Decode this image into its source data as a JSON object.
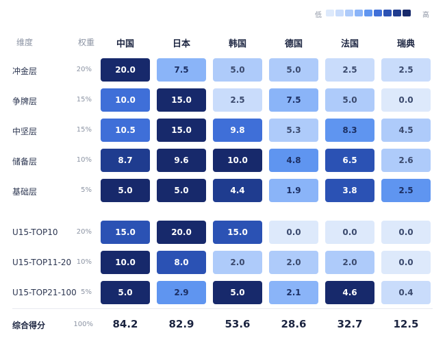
{
  "legend": {
    "low_label": "低",
    "high_label": "高",
    "colors": [
      "#dde9fb",
      "#c9dcfb",
      "#aecbfa",
      "#8ab4f8",
      "#5f95f0",
      "#3f6fd8",
      "#2b52b4",
      "#1f3c8f",
      "#17296b"
    ]
  },
  "table": {
    "dimension_header": "维度",
    "weight_header": "权重",
    "total_label": "综合得分",
    "total_weight": "100%"
  },
  "chart_data": {
    "type": "heatmap",
    "countries": [
      "中国",
      "日本",
      "韩国",
      "德国",
      "法国",
      "瑞典"
    ],
    "rows": [
      {
        "label": "冲金层",
        "weight": "20%",
        "values": [
          20.0,
          7.5,
          5.0,
          5.0,
          2.5,
          2.5
        ],
        "display": [
          "20.0",
          "7.5",
          "5.0",
          "5.0",
          "2.5",
          "2.5"
        ],
        "levels": [
          9,
          4,
          3,
          3,
          2,
          2
        ]
      },
      {
        "label": "争牌层",
        "weight": "15%",
        "values": [
          10.0,
          15.0,
          2.5,
          7.5,
          5.0,
          0.0
        ],
        "display": [
          "10.0",
          "15.0",
          "2.5",
          "7.5",
          "5.0",
          "0.0"
        ],
        "levels": [
          6,
          9,
          2,
          4,
          3,
          1
        ]
      },
      {
        "label": "中坚层",
        "weight": "15%",
        "values": [
          10.5,
          15.0,
          9.8,
          5.3,
          8.3,
          4.5
        ],
        "display": [
          "10.5",
          "15.0",
          "9.8",
          "5.3",
          "8.3",
          "4.5"
        ],
        "levels": [
          6,
          9,
          6,
          3,
          5,
          3
        ]
      },
      {
        "label": "储备层",
        "weight": "10%",
        "values": [
          8.7,
          9.6,
          10.0,
          4.8,
          6.5,
          2.6
        ],
        "display": [
          "8.7",
          "9.6",
          "10.0",
          "4.8",
          "6.5",
          "2.6"
        ],
        "levels": [
          8,
          9,
          9,
          5,
          7,
          3
        ]
      },
      {
        "label": "基础层",
        "weight": "5%",
        "values": [
          5.0,
          5.0,
          4.4,
          1.9,
          3.8,
          2.5
        ],
        "display": [
          "5.0",
          "5.0",
          "4.4",
          "1.9",
          "3.8",
          "2.5"
        ],
        "levels": [
          9,
          9,
          8,
          4,
          7,
          5
        ]
      },
      {
        "label": "U15-TOP10",
        "weight": "20%",
        "values": [
          15.0,
          20.0,
          15.0,
          0.0,
          0.0,
          0.0
        ],
        "display": [
          "15.0",
          "20.0",
          "15.0",
          "0.0",
          "0.0",
          "0.0"
        ],
        "levels": [
          7,
          9,
          7,
          1,
          1,
          1
        ]
      },
      {
        "label": "U15-TOP11-20",
        "weight": "10%",
        "values": [
          10.0,
          8.0,
          2.0,
          2.0,
          2.0,
          0.0
        ],
        "display": [
          "10.0",
          "8.0",
          "2.0",
          "2.0",
          "2.0",
          "0.0"
        ],
        "levels": [
          9,
          7,
          3,
          3,
          3,
          1
        ]
      },
      {
        "label": "U15-TOP21-100",
        "weight": "5%",
        "values": [
          5.0,
          2.9,
          5.0,
          2.1,
          4.6,
          0.4
        ],
        "display": [
          "5.0",
          "2.9",
          "5.0",
          "2.1",
          "4.6",
          "0.4"
        ],
        "levels": [
          9,
          5,
          9,
          4,
          9,
          2
        ]
      }
    ],
    "totals": [
      "84.2",
      "82.9",
      "53.6",
      "28.6",
      "32.7",
      "12.5"
    ]
  }
}
